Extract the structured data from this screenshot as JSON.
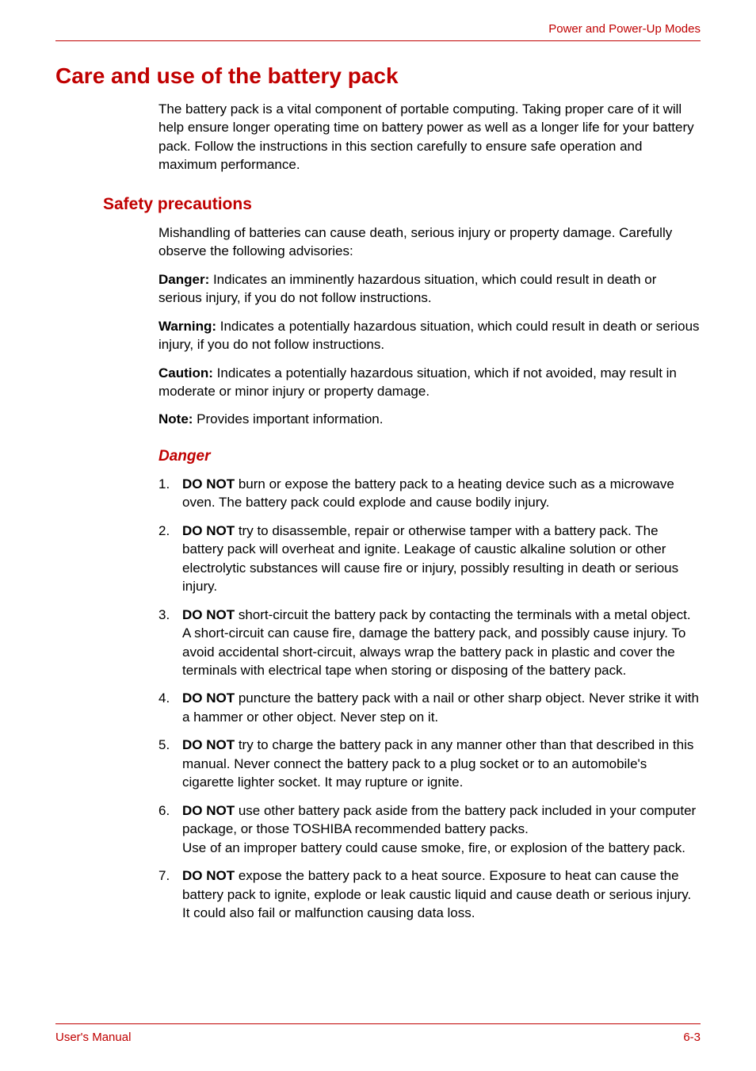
{
  "header": {
    "right": "Power and Power-Up Modes"
  },
  "h1": "Care and use of the battery pack",
  "intro": "The battery pack is a vital component of portable computing. Taking proper care of it will help ensure longer operating time on battery power as well as a longer life for your battery pack. Follow the instructions in this section carefully to ensure safe operation and maximum performance.",
  "h2": "Safety precautions",
  "p1": "Mishandling of batteries can cause death, serious injury or property damage. Carefully observe the following advisories:",
  "p2_b": "Danger:",
  "p2": " Indicates an imminently hazardous situation, which could result in death or serious injury, if you do not follow instructions.",
  "p3_b": "Warning:",
  "p3": " Indicates a potentially hazardous situation, which could result in death or serious injury, if you do not follow instructions.",
  "p4_b": "Caution:",
  "p4": " Indicates a potentially hazardous situation, which if not avoided, may result in moderate or minor injury or property damage.",
  "p5_b": "Note:",
  "p5": " Provides important information.",
  "h3": "Danger",
  "donot": "DO NOT",
  "li1": " burn or expose the battery pack to a heating device such as a microwave oven. The battery pack could explode and cause bodily injury.",
  "li2": " try to disassemble, repair or otherwise tamper with a battery pack. The battery pack will overheat and ignite. Leakage of caustic alkaline solution or other electrolytic substances will cause fire or injury, possibly resulting in death or serious injury.",
  "li3": " short-circuit the battery pack by contacting the terminals with a metal object. A short-circuit can cause fire, damage the battery pack, and possibly cause injury. To avoid accidental short-circuit, always wrap the battery pack in plastic and cover the terminals with electrical tape when storing or disposing of the battery pack.",
  "li4": " puncture the battery pack with a nail or other sharp object. Never strike it with a hammer or other object. Never step on it.",
  "li5": " try to charge the battery pack in any manner other than that described in this manual. Never connect the battery pack to a plug socket or to an automobile's cigarette lighter socket. It may rupture or ignite.",
  "li6a": " use other battery pack aside from the battery pack included in your computer package, or those TOSHIBA recommended battery packs.",
  "li6b": "Use of an improper battery could cause smoke, fire, or explosion of the battery pack.",
  "li7": " expose the battery pack to a heat source. Exposure to heat can cause the battery pack to ignite, explode or leak caustic liquid and cause death or serious injury. It could also fail or malfunction causing data loss.",
  "footer": {
    "left": "User's Manual",
    "right": "6-3"
  },
  "colors": {
    "accent": "#c00000",
    "text": "#000000",
    "bg": "#ffffff"
  },
  "typography": {
    "h1_size": 28,
    "h2_size": 21,
    "h3_size": 19,
    "body_size": 17,
    "footer_size": 15
  }
}
